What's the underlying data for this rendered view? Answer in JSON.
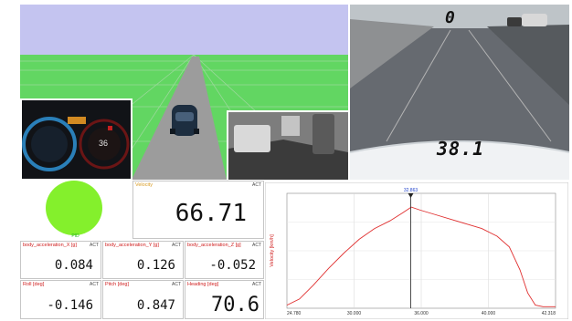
{
  "camera": {
    "speed_top": "0",
    "speed_main": "38.1"
  },
  "indicator": {
    "label": "PID",
    "color": "#84f02c"
  },
  "main_value": {
    "label": "Velocity",
    "tag": "ACT",
    "value": "66.71"
  },
  "panels": [
    {
      "label": "body_acceleration_X [g]",
      "tag": "ACT",
      "value": "0.084"
    },
    {
      "label": "body_acceleration_Y [g]",
      "tag": "ACT",
      "value": "0.126"
    },
    {
      "label": "body_acceleration_Z [g]",
      "tag": "ACT",
      "value": "-0.052"
    },
    {
      "label": "Roll [deg]",
      "tag": "ACT",
      "value": "-0.146"
    },
    {
      "label": "Pitch [deg]",
      "tag": "ACT",
      "value": "0.847"
    },
    {
      "label": "Heading [deg]",
      "tag": "ACT",
      "value": "70.6"
    }
  ],
  "chart_data": {
    "type": "line",
    "ylabel": "Velocity [km/h]",
    "xlabel": "",
    "cursor_label": "32.863",
    "x_range": [
      24.78,
      42.318
    ],
    "y_range": [
      0,
      75
    ],
    "x_tick_labels": [
      "24.780",
      "30.000",
      "36.000",
      "40.000",
      "42.318"
    ],
    "series": [
      {
        "color": "#e03030",
        "x": [
          24.78,
          25.6,
          26.5,
          27.5,
          28.5,
          29.5,
          30.5,
          31.5,
          32.3,
          32.9,
          33.5,
          34.5,
          35.5,
          36.5,
          37.5,
          38.5,
          39.3,
          40.0,
          40.5,
          41.0,
          41.5,
          42.318
        ],
        "y": [
          2,
          6,
          15,
          26,
          36,
          45,
          52,
          57,
          62,
          66,
          64,
          61,
          58,
          55,
          52,
          47,
          40,
          25,
          10,
          2,
          1,
          1
        ]
      }
    ]
  }
}
